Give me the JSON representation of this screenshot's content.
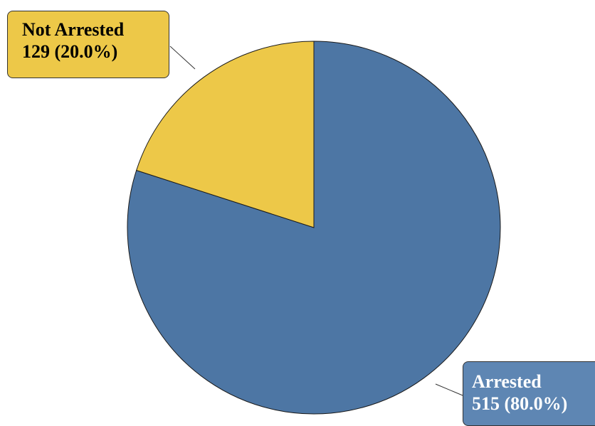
{
  "chart_data": {
    "type": "pie",
    "slices": [
      {
        "label": "Arrested",
        "value": 515,
        "percent_text": "515 (80.0%)",
        "color": "#4D76A4"
      },
      {
        "label": "Not Arrested",
        "value": 129,
        "percent_text": "129 (20.0%)",
        "color": "#EDC848"
      }
    ],
    "label_box_colors": {
      "Arrested": "#5E86B3",
      "Not Arrested": "#EDC848"
    }
  }
}
